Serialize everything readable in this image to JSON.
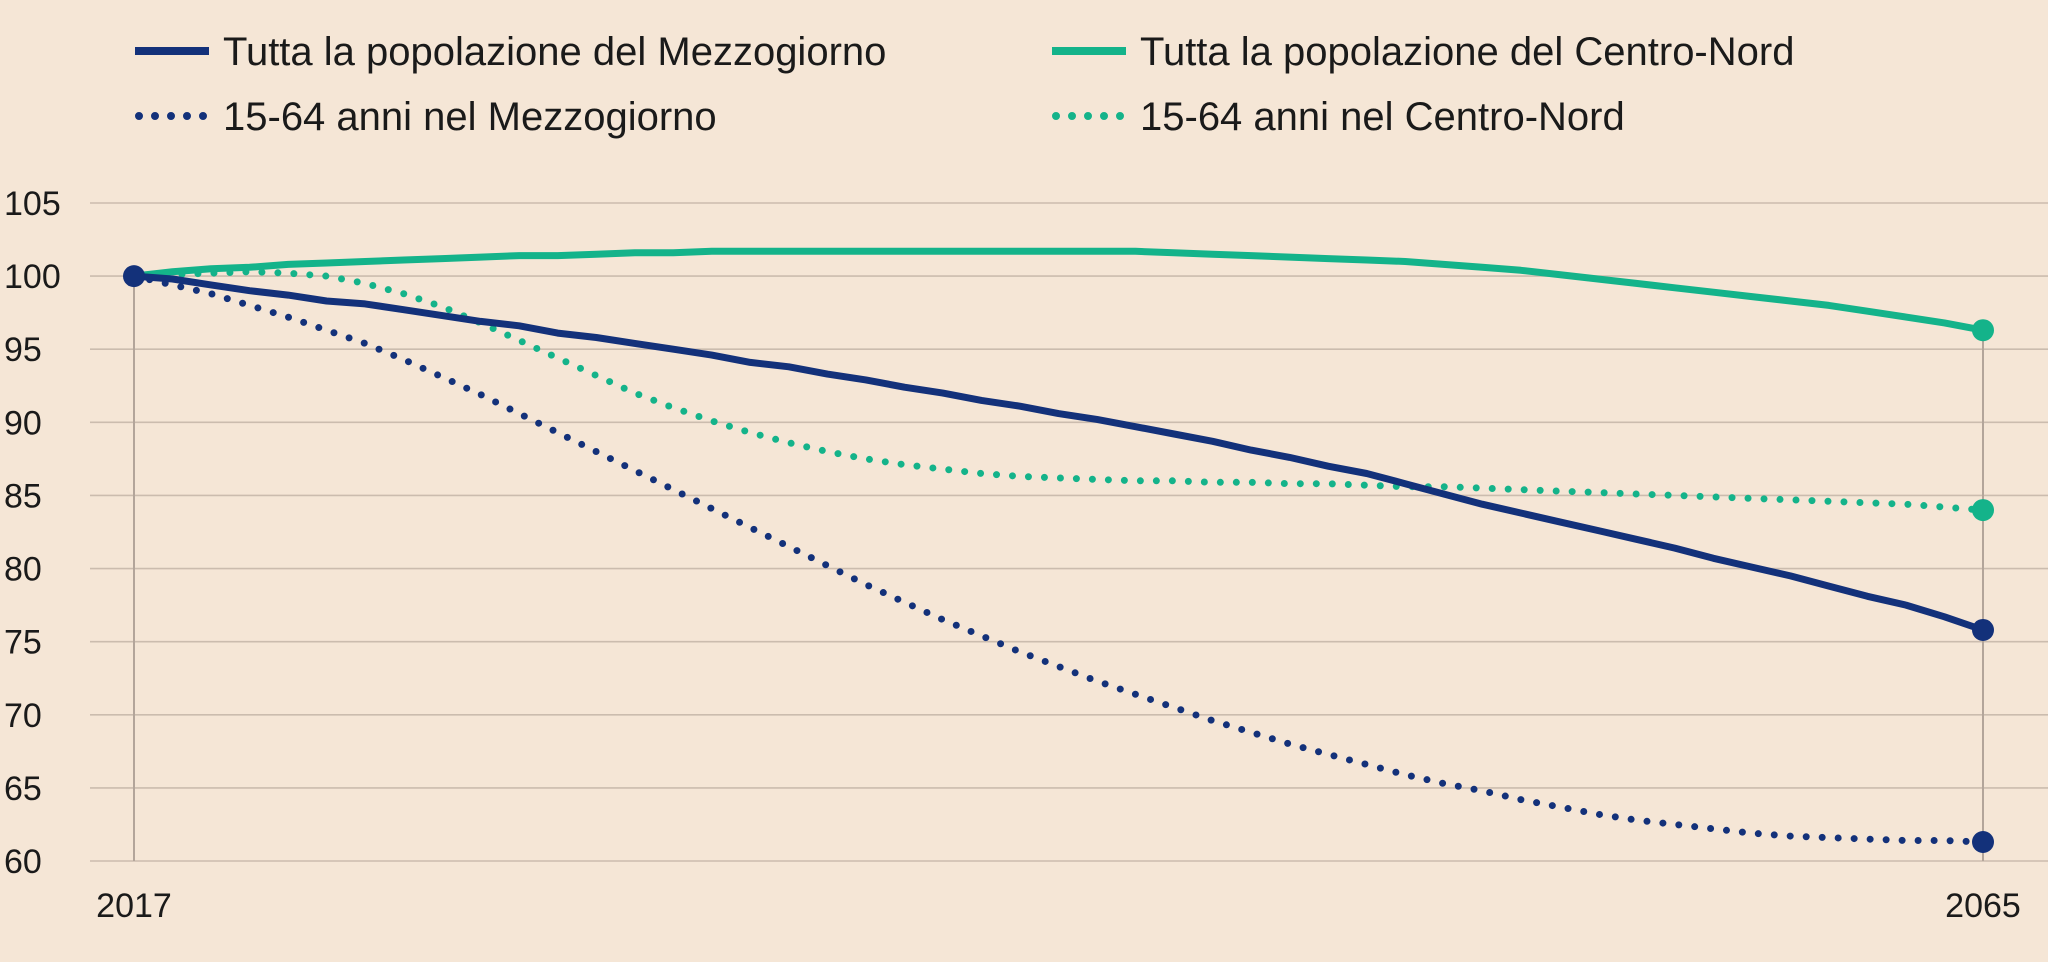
{
  "chart_data": {
    "type": "line",
    "title": "",
    "xlabel": "",
    "ylabel": "",
    "x_ticks": [
      "2017",
      "2065"
    ],
    "x": [
      2017,
      2018,
      2019,
      2020,
      2021,
      2022,
      2023,
      2024,
      2025,
      2026,
      2027,
      2028,
      2029,
      2030,
      2031,
      2032,
      2033,
      2034,
      2035,
      2036,
      2037,
      2038,
      2039,
      2040,
      2041,
      2042,
      2043,
      2044,
      2045,
      2046,
      2047,
      2048,
      2049,
      2050,
      2051,
      2052,
      2053,
      2054,
      2055,
      2056,
      2057,
      2058,
      2059,
      2060,
      2061,
      2062,
      2063,
      2064,
      2065
    ],
    "ylim": [
      60,
      105
    ],
    "yticks": [
      "60",
      "65",
      "70",
      "75",
      "80",
      "85",
      "90",
      "95",
      "100",
      "105"
    ],
    "grid": true,
    "legend_position": "top",
    "series": [
      {
        "name": "Tutta la popolazione del Mezzogiorno",
        "style": "solid",
        "color": "#13317a",
        "end_marker": true,
        "values": [
          100,
          99.8,
          99.4,
          99.0,
          98.7,
          98.3,
          98.1,
          97.7,
          97.3,
          96.9,
          96.6,
          96.1,
          95.8,
          95.4,
          95.0,
          94.6,
          94.1,
          93.8,
          93.3,
          92.9,
          92.4,
          92.0,
          91.5,
          91.1,
          90.6,
          90.2,
          89.7,
          89.2,
          88.7,
          88.1,
          87.6,
          87.0,
          86.5,
          85.8,
          85.1,
          84.4,
          83.8,
          83.2,
          82.6,
          82.0,
          81.4,
          80.7,
          80.1,
          79.5,
          78.8,
          78.1,
          77.5,
          76.7,
          75.8
        ]
      },
      {
        "name": "Tutta la popolazione del Centro-Nord",
        "style": "solid",
        "color": "#14b38a",
        "end_marker": true,
        "values": [
          100,
          100.3,
          100.5,
          100.6,
          100.8,
          100.9,
          101.0,
          101.1,
          101.2,
          101.3,
          101.4,
          101.4,
          101.5,
          101.6,
          101.6,
          101.7,
          101.7,
          101.7,
          101.7,
          101.7,
          101.7,
          101.7,
          101.7,
          101.7,
          101.7,
          101.7,
          101.7,
          101.6,
          101.5,
          101.4,
          101.3,
          101.2,
          101.1,
          101.0,
          100.8,
          100.6,
          100.4,
          100.1,
          99.8,
          99.5,
          99.2,
          98.9,
          98.6,
          98.3,
          98.0,
          97.6,
          97.2,
          96.8,
          96.3
        ]
      },
      {
        "name": "15-64 anni nel Mezzogiorno",
        "style": "dotted",
        "color": "#13317a",
        "end_marker": true,
        "values": [
          100,
          99.4,
          98.8,
          98.0,
          97.2,
          96.3,
          95.4,
          94.3,
          93.1,
          91.9,
          90.6,
          89.3,
          88.0,
          86.7,
          85.4,
          84.1,
          82.8,
          81.5,
          80.2,
          78.9,
          77.7,
          76.5,
          75.4,
          74.3,
          73.3,
          72.3,
          71.4,
          70.5,
          69.6,
          68.8,
          68.0,
          67.3,
          66.6,
          65.9,
          65.3,
          64.8,
          64.2,
          63.7,
          63.2,
          62.8,
          62.5,
          62.2,
          61.9,
          61.7,
          61.6,
          61.5,
          61.4,
          61.4,
          61.3
        ]
      },
      {
        "name": "15-64 anni nel Centro-Nord",
        "style": "dotted",
        "color": "#14b38a",
        "end_marker": true,
        "values": [
          100,
          100.1,
          100.2,
          100.3,
          100.2,
          100.0,
          99.5,
          98.8,
          97.9,
          96.8,
          95.6,
          94.4,
          93.2,
          92.0,
          91.0,
          90.1,
          89.3,
          88.6,
          88.0,
          87.5,
          87.1,
          86.8,
          86.5,
          86.3,
          86.2,
          86.1,
          86.0,
          86.0,
          85.9,
          85.9,
          85.8,
          85.8,
          85.7,
          85.6,
          85.6,
          85.5,
          85.4,
          85.3,
          85.2,
          85.1,
          85.0,
          84.9,
          84.8,
          84.7,
          84.6,
          84.5,
          84.4,
          84.2,
          84.0
        ]
      }
    ]
  }
}
